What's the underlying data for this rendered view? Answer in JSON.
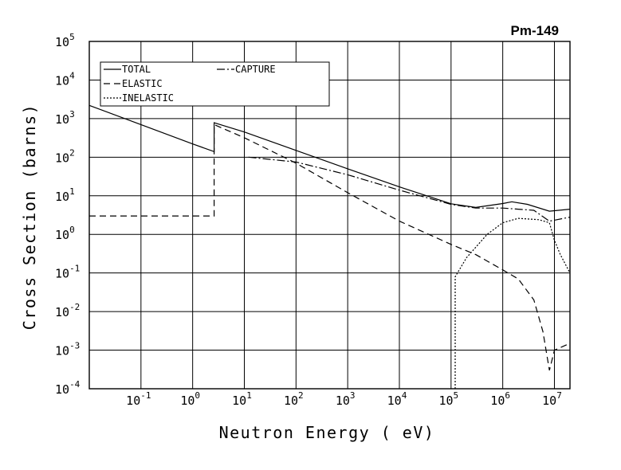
{
  "chart_data": {
    "type": "line",
    "title": "Pm-149",
    "xlabel": "Neutron Energy ( eV)",
    "ylabel": "Cross Section (barns)",
    "x_scale": "log",
    "y_scale": "log",
    "xlim": [
      0.01,
      20000000
    ],
    "ylim": [
      0.0001,
      100000
    ],
    "grid": true,
    "legend_position": "top-left",
    "x_ticks": [
      {
        "value": 0.1,
        "base": "10",
        "exp": "-1"
      },
      {
        "value": 1,
        "base": "10",
        "exp": "0"
      },
      {
        "value": 10,
        "base": "10",
        "exp": "1"
      },
      {
        "value": 100,
        "base": "10",
        "exp": "2"
      },
      {
        "value": 1000,
        "base": "10",
        "exp": "3"
      },
      {
        "value": 10000,
        "base": "10",
        "exp": "4"
      },
      {
        "value": 100000,
        "base": "10",
        "exp": "5"
      },
      {
        "value": 1000000,
        "base": "10",
        "exp": "6"
      },
      {
        "value": 10000000,
        "base": "10",
        "exp": "7"
      }
    ],
    "y_ticks": [
      {
        "value": 0.0001,
        "base": "10",
        "exp": "-4"
      },
      {
        "value": 0.001,
        "base": "10",
        "exp": "-3"
      },
      {
        "value": 0.01,
        "base": "10",
        "exp": "-2"
      },
      {
        "value": 0.1,
        "base": "10",
        "exp": "-1"
      },
      {
        "value": 1,
        "base": "10",
        "exp": "0"
      },
      {
        "value": 10,
        "base": "10",
        "exp": "1"
      },
      {
        "value": 100,
        "base": "10",
        "exp": "2"
      },
      {
        "value": 1000,
        "base": "10",
        "exp": "3"
      },
      {
        "value": 10000,
        "base": "10",
        "exp": "4"
      },
      {
        "value": 100000,
        "base": "10",
        "exp": "5"
      }
    ],
    "series": [
      {
        "name": "TOTAL",
        "dash": "none",
        "points": [
          [
            0.01,
            2200
          ],
          [
            0.1,
            700
          ],
          [
            1,
            220
          ],
          [
            2.6,
            140
          ],
          [
            2.6,
            780
          ],
          [
            10,
            450
          ],
          [
            100,
            150
          ],
          [
            1000,
            50
          ],
          [
            10000,
            17
          ],
          [
            100000,
            6.2
          ],
          [
            300000,
            5
          ],
          [
            1000000,
            6.3
          ],
          [
            1500000,
            7
          ],
          [
            3000000,
            6
          ],
          [
            8000000,
            4
          ],
          [
            20000000,
            4.5
          ]
        ]
      },
      {
        "name": "ELASTIC",
        "dash": "8,5",
        "points": [
          [
            0.01,
            3
          ],
          [
            2.6,
            3
          ],
          [
            2.6,
            140
          ],
          [
            2.6,
            700
          ],
          [
            10,
            320
          ],
          [
            100,
            70
          ],
          [
            1000,
            12
          ],
          [
            10000,
            2.2
          ],
          [
            100000,
            0.55
          ],
          [
            300000,
            0.3
          ],
          [
            1000000,
            0.12
          ],
          [
            2000000,
            0.07
          ],
          [
            4000000,
            0.02
          ],
          [
            6000000,
            0.003
          ],
          [
            8000000,
            0.0003
          ],
          [
            10000000,
            0.001
          ],
          [
            20000000,
            0.0015
          ]
        ]
      },
      {
        "name": "INELASTIC",
        "dash": "2,2",
        "points": [
          [
            120000,
            0.0001
          ],
          [
            120000,
            0.08
          ],
          [
            200000,
            0.25
          ],
          [
            500000,
            1
          ],
          [
            1000000,
            2
          ],
          [
            2000000,
            2.6
          ],
          [
            5000000,
            2.4
          ],
          [
            8000000,
            2
          ],
          [
            10000000,
            0.7
          ],
          [
            13000000,
            0.3
          ],
          [
            20000000,
            0.1
          ]
        ]
      },
      {
        "name": "CAPTURE",
        "dash": "10,3,2,3",
        "points": [
          [
            12,
            100
          ],
          [
            100,
            75
          ],
          [
            1000,
            35
          ],
          [
            10000,
            14
          ],
          [
            100000,
            6
          ],
          [
            300000,
            4.8
          ],
          [
            1000000,
            4.8
          ],
          [
            2000000,
            4.5
          ],
          [
            4000000,
            4.2
          ],
          [
            8000000,
            2.2
          ],
          [
            20000000,
            2.8
          ]
        ]
      }
    ]
  }
}
